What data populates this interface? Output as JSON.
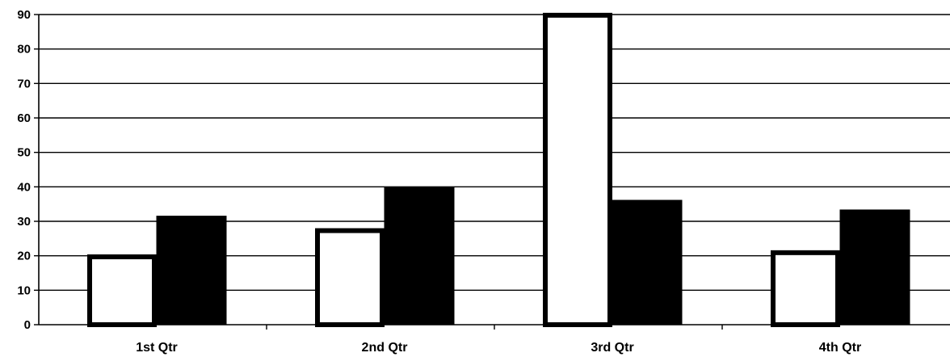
{
  "chart_data": {
    "type": "bar",
    "title": "",
    "xlabel": "",
    "ylabel": "",
    "categories": [
      "1st Qtr",
      "2nd Qtr",
      "3rd Qtr",
      "4th Qtr"
    ],
    "series": [
      {
        "values": [
          20.4,
          28.0,
          90.5,
          21.6
        ],
        "color": "#ffffff",
        "stroke": "#000000"
      },
      {
        "values": [
          31.5,
          39.8,
          36.1,
          33.3
        ],
        "color": "#000000",
        "stroke": "#000000"
      }
    ],
    "ylim": [
      0,
      90
    ],
    "yticks": [
      "0",
      "10",
      "20",
      "30",
      "40",
      "50",
      "60",
      "70",
      "80",
      "90"
    ],
    "grid": true,
    "legend": "none"
  }
}
